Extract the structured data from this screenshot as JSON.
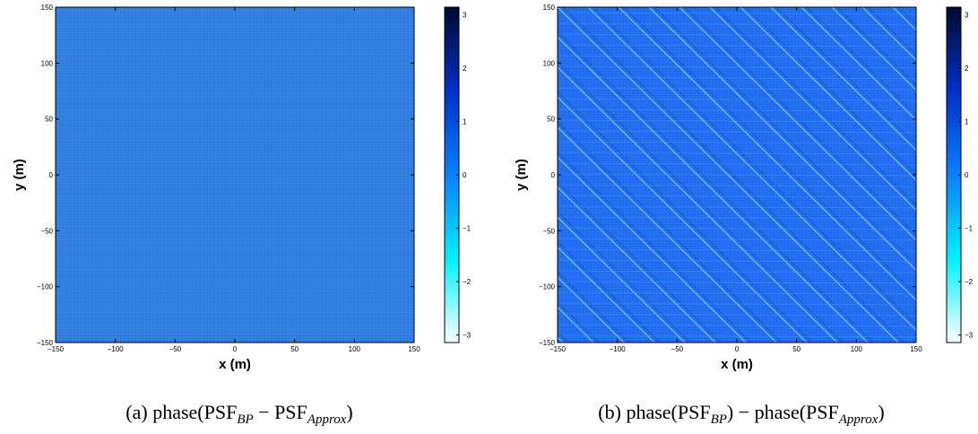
{
  "chart_data": [
    {
      "type": "heatmap",
      "xlabel": "x (m)",
      "ylabel": "y (m)",
      "xlim": [
        -150,
        150
      ],
      "ylim": [
        -150,
        150
      ],
      "xticks": [
        {
          "value": -150,
          "label": "−150"
        },
        {
          "value": -100,
          "label": "−100"
        },
        {
          "value": -50,
          "label": "−50"
        },
        0,
        50,
        100,
        150
      ],
      "yticks": [
        {
          "value": -150,
          "label": "−150"
        },
        {
          "value": -100,
          "label": "−100"
        },
        {
          "value": -50,
          "label": "−50"
        },
        0,
        50,
        100,
        150
      ],
      "colorbar_lim": [
        -3.1416,
        3.1416
      ],
      "colorbar_ticks": [
        {
          "value": -3,
          "label": "−3"
        },
        {
          "value": -2,
          "label": "−2"
        },
        {
          "value": -1,
          "label": "−1"
        },
        0,
        1,
        2,
        3
      ],
      "colormap": [
        "#ffffff",
        "#00f0ff",
        "#0a80ff",
        "#0030c8",
        "#000a33"
      ],
      "field_color": "#2f7ee0",
      "streaks": false,
      "caption": [
        "(a) phase(PSF",
        "BP",
        " − PSF",
        "Approx",
        ")"
      ]
    },
    {
      "type": "heatmap",
      "xlabel": "x (m)",
      "ylabel": "y (m)",
      "xlim": [
        -150,
        150
      ],
      "ylim": [
        -150,
        150
      ],
      "xticks": [
        {
          "value": -150,
          "label": "−150"
        },
        {
          "value": -100,
          "label": "−100"
        },
        {
          "value": -50,
          "label": "−50"
        },
        0,
        50,
        100,
        150
      ],
      "yticks": [
        {
          "value": -150,
          "label": "−150"
        },
        {
          "value": -100,
          "label": "−100"
        },
        {
          "value": -50,
          "label": "−50"
        },
        0,
        50,
        100,
        150
      ],
      "colorbar_lim": [
        -3.1416,
        3.1416
      ],
      "colorbar_ticks": [
        {
          "value": -3,
          "label": "−3"
        },
        {
          "value": -2,
          "label": "−2"
        },
        {
          "value": -1,
          "label": "−1"
        },
        0,
        1,
        2,
        3
      ],
      "colormap": [
        "#ffffff",
        "#00f0ff",
        "#0a80ff",
        "#0030c8",
        "#000a33"
      ],
      "field_color": "#1f6ef2",
      "streaks": true,
      "caption": [
        "(b) phase(PSF",
        "BP",
        ") − phase(PSF",
        "Approx",
        ")"
      ]
    }
  ]
}
